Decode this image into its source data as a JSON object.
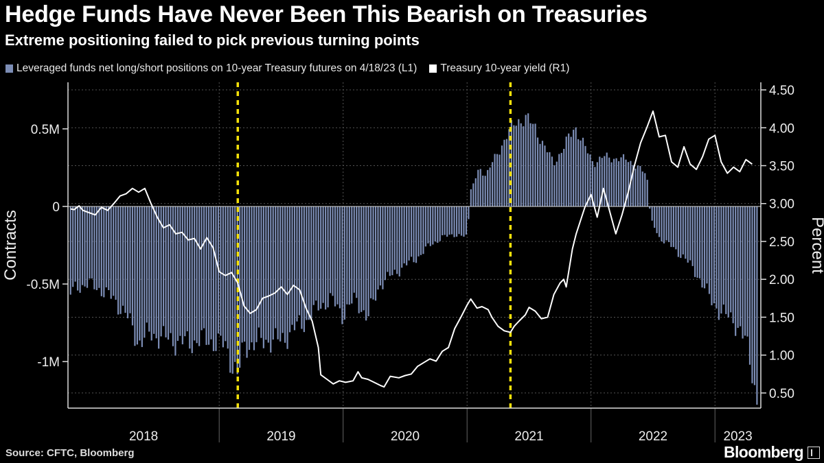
{
  "title": "Hedge Funds Have Never Been This Bearish on Treasuries",
  "subtitle": "Extreme positioning failed to pick previous turning points",
  "legend": [
    {
      "label": "Leveraged funds net long/short positions on 10-year Treasury futures on 4/18/23 (L1)",
      "color": "#7c8db5"
    },
    {
      "label": "Treasury 10-year yield (R1)",
      "color": "#ffffff"
    }
  ],
  "source": "Source: CFTC, Bloomberg",
  "brand": "Bloomberg",
  "chart_data": {
    "type": "bar+line",
    "title": "Hedge Funds Have Never Been This Bearish on Treasuries",
    "subtitle": "Extreme positioning failed to pick previous turning points",
    "ylabel_left": "Contracts",
    "ylabel_right": "Percent",
    "x_range": [
      2017.78,
      2023.37
    ],
    "ylim_left": [
      -1300000,
      800000
    ],
    "ylim_right": [
      0.3,
      4.6
    ],
    "left_ticks": [
      {
        "value": 500000,
        "label": "0.5M"
      },
      {
        "value": 0,
        "label": "0"
      },
      {
        "value": -500000,
        "label": "-0.5M"
      },
      {
        "value": -1000000,
        "label": "-1M"
      }
    ],
    "right_ticks": [
      {
        "value": 4.5,
        "label": "4.50"
      },
      {
        "value": 4.0,
        "label": "4.00"
      },
      {
        "value": 3.5,
        "label": "3.50"
      },
      {
        "value": 3.0,
        "label": "3.00"
      },
      {
        "value": 2.5,
        "label": "2.50"
      },
      {
        "value": 2.0,
        "label": "2.00"
      },
      {
        "value": 1.5,
        "label": "1.50"
      },
      {
        "value": 1.0,
        "label": "1.00"
      },
      {
        "value": 0.5,
        "label": "0.50"
      }
    ],
    "years": [
      {
        "label": "2018",
        "start": 2017.78,
        "end": 2019.0
      },
      {
        "label": "2019",
        "start": 2019.0,
        "end": 2020.0
      },
      {
        "label": "2020",
        "start": 2020.0,
        "end": 2021.0
      },
      {
        "label": "2021",
        "start": 2021.0,
        "end": 2022.0
      },
      {
        "label": "2022",
        "start": 2022.0,
        "end": 2023.0
      },
      {
        "label": "2023",
        "start": 2023.0,
        "end": 2023.37
      }
    ],
    "markers": [
      2019.15,
      2021.35
    ],
    "series": [
      {
        "name": "Leveraged funds net long/short positions on 10-year Treasury futures (L1)",
        "axis": "left",
        "kind": "bar",
        "color": "#7c8db5",
        "points": [
          [
            2017.8,
            -560000
          ],
          [
            2017.85,
            -520000
          ],
          [
            2017.95,
            -500000
          ],
          [
            2018.05,
            -540000
          ],
          [
            2018.15,
            -600000
          ],
          [
            2018.25,
            -700000
          ],
          [
            2018.35,
            -880000
          ],
          [
            2018.45,
            -820000
          ],
          [
            2018.55,
            -850000
          ],
          [
            2018.65,
            -870000
          ],
          [
            2018.75,
            -880000
          ],
          [
            2018.85,
            -860000
          ],
          [
            2018.95,
            -870000
          ],
          [
            2019.05,
            -900000
          ],
          [
            2019.15,
            -1100000
          ],
          [
            2019.2,
            -900000
          ],
          [
            2019.3,
            -880000
          ],
          [
            2019.4,
            -860000
          ],
          [
            2019.5,
            -870000
          ],
          [
            2019.6,
            -790000
          ],
          [
            2019.7,
            -740000
          ],
          [
            2019.8,
            -650000
          ],
          [
            2019.9,
            -600000
          ],
          [
            2020.0,
            -700000
          ],
          [
            2020.05,
            -640000
          ],
          [
            2020.1,
            -600000
          ],
          [
            2020.2,
            -720000
          ],
          [
            2020.25,
            -600000
          ],
          [
            2020.3,
            -500000
          ],
          [
            2020.4,
            -440000
          ],
          [
            2020.5,
            -380000
          ],
          [
            2020.6,
            -330000
          ],
          [
            2020.7,
            -250000
          ],
          [
            2020.8,
            -200000
          ],
          [
            2020.9,
            -180000
          ],
          [
            2021.0,
            -200000
          ],
          [
            2021.03,
            100000
          ],
          [
            2021.1,
            250000
          ],
          [
            2021.15,
            200000
          ],
          [
            2021.25,
            350000
          ],
          [
            2021.32,
            460000
          ],
          [
            2021.4,
            550000
          ],
          [
            2021.47,
            570000
          ],
          [
            2021.55,
            510000
          ],
          [
            2021.62,
            390000
          ],
          [
            2021.7,
            280000
          ],
          [
            2021.78,
            380000
          ],
          [
            2021.87,
            520000
          ],
          [
            2021.95,
            380000
          ],
          [
            2022.02,
            280000
          ],
          [
            2022.1,
            320000
          ],
          [
            2022.2,
            310000
          ],
          [
            2022.3,
            300000
          ],
          [
            2022.37,
            260000
          ],
          [
            2022.45,
            200000
          ],
          [
            2022.48,
            -80000
          ],
          [
            2022.55,
            -200000
          ],
          [
            2022.65,
            -260000
          ],
          [
            2022.75,
            -330000
          ],
          [
            2022.85,
            -430000
          ],
          [
            2022.95,
            -580000
          ],
          [
            2023.05,
            -690000
          ],
          [
            2023.15,
            -730000
          ],
          [
            2023.25,
            -880000
          ],
          [
            2023.3,
            -1050000
          ],
          [
            2023.34,
            -1270000
          ]
        ]
      },
      {
        "name": "Treasury 10-year yield (R1)",
        "axis": "right",
        "kind": "line",
        "color": "#ffffff",
        "points": [
          [
            2017.8,
            2.93
          ],
          [
            2017.83,
            2.92
          ],
          [
            2017.87,
            2.97
          ],
          [
            2017.9,
            2.91
          ],
          [
            2017.95,
            2.88
          ],
          [
            2018.0,
            2.85
          ],
          [
            2018.05,
            2.95
          ],
          [
            2018.1,
            2.91
          ],
          [
            2018.15,
            3.0
          ],
          [
            2018.2,
            3.1
          ],
          [
            2018.25,
            3.13
          ],
          [
            2018.3,
            3.2
          ],
          [
            2018.35,
            3.15
          ],
          [
            2018.4,
            3.2
          ],
          [
            2018.45,
            3.0
          ],
          [
            2018.5,
            2.82
          ],
          [
            2018.55,
            2.68
          ],
          [
            2018.6,
            2.72
          ],
          [
            2018.65,
            2.6
          ],
          [
            2018.7,
            2.62
          ],
          [
            2018.75,
            2.52
          ],
          [
            2018.8,
            2.54
          ],
          [
            2018.85,
            2.4
          ],
          [
            2018.9,
            2.55
          ],
          [
            2018.95,
            2.42
          ],
          [
            2019.0,
            2.1
          ],
          [
            2019.05,
            2.05
          ],
          [
            2019.1,
            2.09
          ],
          [
            2019.15,
            1.95
          ],
          [
            2019.2,
            1.65
          ],
          [
            2019.25,
            1.55
          ],
          [
            2019.3,
            1.6
          ],
          [
            2019.35,
            1.75
          ],
          [
            2019.4,
            1.78
          ],
          [
            2019.45,
            1.82
          ],
          [
            2019.5,
            1.9
          ],
          [
            2019.55,
            1.8
          ],
          [
            2019.6,
            1.92
          ],
          [
            2019.65,
            1.86
          ],
          [
            2019.7,
            1.62
          ],
          [
            2019.75,
            1.45
          ],
          [
            2019.8,
            1.1
          ],
          [
            2019.82,
            0.74
          ],
          [
            2019.87,
            0.68
          ],
          [
            2019.92,
            0.62
          ],
          [
            2019.97,
            0.66
          ],
          [
            2020.02,
            0.64
          ],
          [
            2020.08,
            0.66
          ],
          [
            2020.12,
            0.78
          ],
          [
            2020.15,
            0.7
          ],
          [
            2020.2,
            0.68
          ],
          [
            2020.25,
            0.64
          ],
          [
            2020.3,
            0.6
          ],
          [
            2020.33,
            0.58
          ],
          [
            2020.38,
            0.72
          ],
          [
            2020.45,
            0.7
          ],
          [
            2020.5,
            0.73
          ],
          [
            2020.55,
            0.75
          ],
          [
            2020.6,
            0.85
          ],
          [
            2020.65,
            0.9
          ],
          [
            2020.7,
            0.95
          ],
          [
            2020.75,
            0.92
          ],
          [
            2020.8,
            1.05
          ],
          [
            2020.85,
            1.1
          ],
          [
            2020.9,
            1.35
          ],
          [
            2020.95,
            1.5
          ],
          [
            2021.0,
            1.66
          ],
          [
            2021.03,
            1.74
          ],
          [
            2021.08,
            1.62
          ],
          [
            2021.12,
            1.64
          ],
          [
            2021.17,
            1.6
          ],
          [
            2021.2,
            1.5
          ],
          [
            2021.25,
            1.38
          ],
          [
            2021.3,
            1.32
          ],
          [
            2021.35,
            1.3
          ],
          [
            2021.38,
            1.38
          ],
          [
            2021.42,
            1.45
          ],
          [
            2021.47,
            1.53
          ],
          [
            2021.5,
            1.63
          ],
          [
            2021.55,
            1.58
          ],
          [
            2021.6,
            1.48
          ],
          [
            2021.65,
            1.5
          ],
          [
            2021.7,
            1.8
          ],
          [
            2021.75,
            1.95
          ],
          [
            2021.78,
            2.0
          ],
          [
            2021.8,
            1.9
          ],
          [
            2021.85,
            2.4
          ],
          [
            2021.88,
            2.6
          ],
          [
            2021.92,
            2.8
          ],
          [
            2021.95,
            2.95
          ],
          [
            2022.0,
            3.12
          ],
          [
            2022.05,
            2.82
          ],
          [
            2022.1,
            3.2
          ],
          [
            2022.15,
            2.9
          ],
          [
            2022.2,
            2.6
          ],
          [
            2022.25,
            2.85
          ],
          [
            2022.3,
            3.15
          ],
          [
            2022.35,
            3.5
          ],
          [
            2022.4,
            3.8
          ],
          [
            2022.45,
            4.0
          ],
          [
            2022.5,
            4.22
          ],
          [
            2022.55,
            3.88
          ],
          [
            2022.6,
            3.9
          ],
          [
            2022.65,
            3.55
          ],
          [
            2022.7,
            3.48
          ],
          [
            2022.75,
            3.75
          ],
          [
            2022.8,
            3.52
          ],
          [
            2022.85,
            3.45
          ],
          [
            2022.9,
            3.62
          ],
          [
            2022.95,
            3.85
          ],
          [
            2023.0,
            3.9
          ],
          [
            2023.05,
            3.55
          ],
          [
            2023.1,
            3.4
          ],
          [
            2023.15,
            3.48
          ],
          [
            2023.2,
            3.42
          ],
          [
            2023.25,
            3.58
          ],
          [
            2023.3,
            3.52
          ]
        ]
      }
    ]
  }
}
